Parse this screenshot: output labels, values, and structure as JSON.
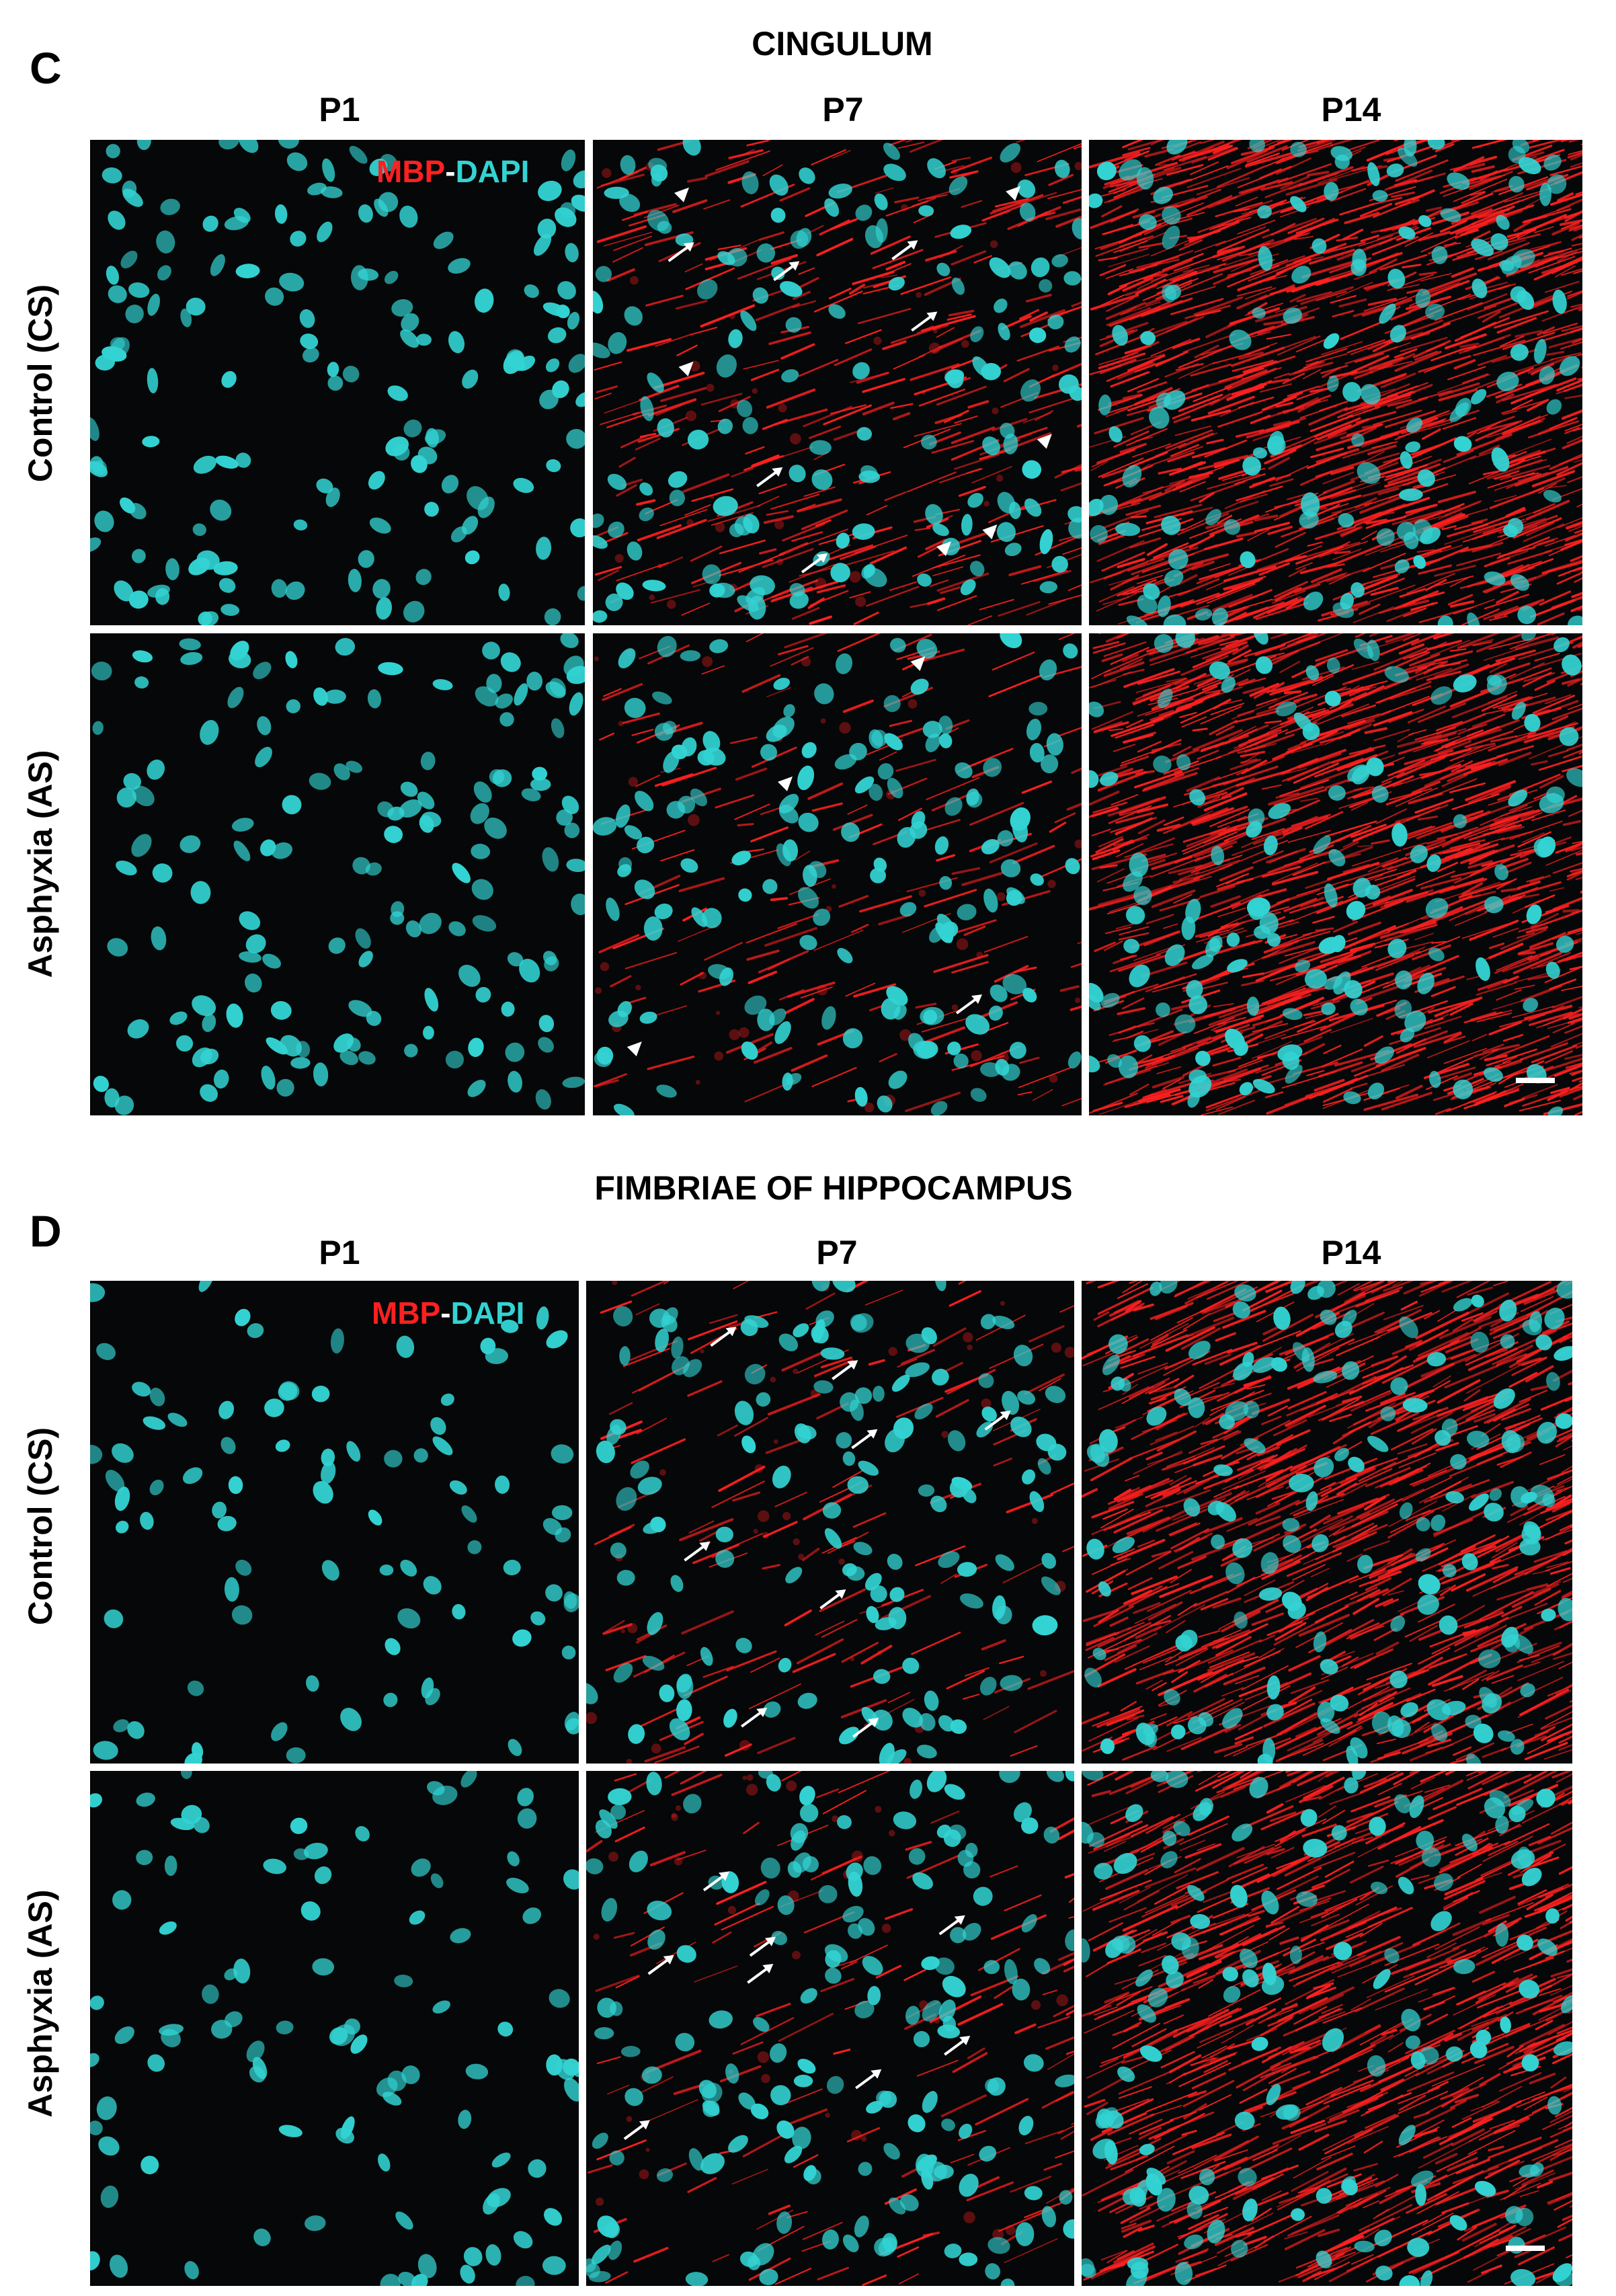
{
  "figure": {
    "sections": [
      {
        "letter": "C",
        "title": "CINGULUM",
        "columns": [
          "P1",
          "P7",
          "P14"
        ],
        "rows": [
          "Control (CS)",
          "Asphyxia (AS)"
        ],
        "legend": {
          "mbp": "MBP",
          "sep": "-",
          "dapi": "DAPI"
        },
        "panels": [
          {
            "row": "Control (CS)",
            "col": "P1",
            "mbp_level": 0.0,
            "cell_density": 0.8,
            "arrows": 0,
            "arrowheads": 0,
            "scalebar": false
          },
          {
            "row": "Control (CS)",
            "col": "P7",
            "mbp_level": 0.25,
            "cell_density": 0.75,
            "arrows": 6,
            "arrowheads": 6,
            "scalebar": false
          },
          {
            "row": "Control (CS)",
            "col": "P14",
            "mbp_level": 0.9,
            "cell_density": 0.7,
            "arrows": 0,
            "arrowheads": 0,
            "scalebar": false
          },
          {
            "row": "Asphyxia (AS)",
            "col": "P1",
            "mbp_level": 0.0,
            "cell_density": 0.75,
            "arrows": 0,
            "arrowheads": 0,
            "scalebar": false
          },
          {
            "row": "Asphyxia (AS)",
            "col": "P7",
            "mbp_level": 0.12,
            "cell_density": 0.8,
            "arrows": 1,
            "arrowheads": 3,
            "scalebar": false
          },
          {
            "row": "Asphyxia (AS)",
            "col": "P14",
            "mbp_level": 0.85,
            "cell_density": 0.7,
            "arrows": 0,
            "arrowheads": 0,
            "scalebar": true
          }
        ]
      },
      {
        "letter": "D",
        "title": "FIMBRIAE OF HIPPOCAMPUS",
        "columns": [
          "P1",
          "P7",
          "P14"
        ],
        "rows": [
          "Control (CS)",
          "Asphyxia (AS)"
        ],
        "legend": {
          "mbp": "MBP",
          "sep": "-",
          "dapi": "DAPI"
        },
        "panels": [
          {
            "row": "Control (CS)",
            "col": "P1",
            "mbp_level": 0.0,
            "cell_density": 0.45,
            "arrows": 0,
            "arrowheads": 0,
            "scalebar": false
          },
          {
            "row": "Control (CS)",
            "col": "P7",
            "mbp_level": 0.1,
            "cell_density": 0.7,
            "arrows": 8,
            "arrowheads": 0,
            "scalebar": false
          },
          {
            "row": "Control (CS)",
            "col": "P14",
            "mbp_level": 0.7,
            "cell_density": 0.8,
            "arrows": 0,
            "arrowheads": 0,
            "scalebar": false
          },
          {
            "row": "Asphyxia (AS)",
            "col": "P1",
            "mbp_level": 0.0,
            "cell_density": 0.5,
            "arrows": 0,
            "arrowheads": 0,
            "scalebar": false
          },
          {
            "row": "Asphyxia (AS)",
            "col": "P7",
            "mbp_level": 0.1,
            "cell_density": 0.85,
            "arrows": 8,
            "arrowheads": 0,
            "scalebar": false
          },
          {
            "row": "Asphyxia (AS)",
            "col": "P14",
            "mbp_level": 0.7,
            "cell_density": 0.75,
            "arrows": 0,
            "arrowheads": 0,
            "scalebar": true
          }
        ]
      }
    ]
  },
  "colors": {
    "mbp": "#ff2020",
    "dapi": "#33d3d3",
    "background": "#050708"
  }
}
